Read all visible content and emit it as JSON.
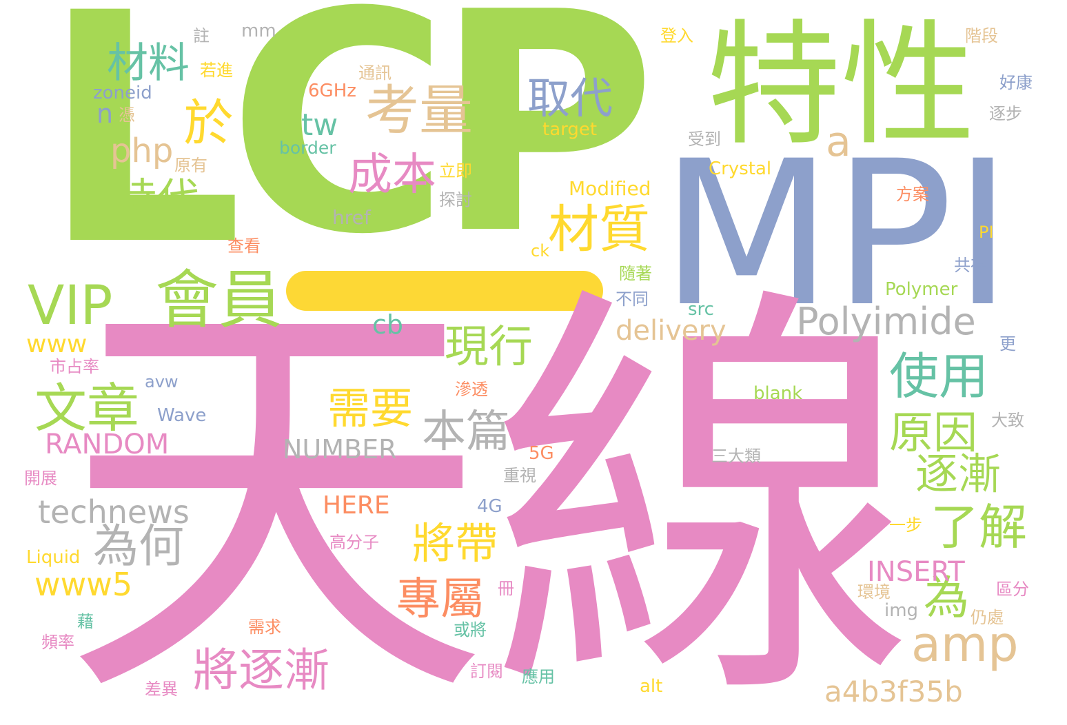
{
  "palette": {
    "green": "#a6d854",
    "blue": "#8da0cb",
    "pink": "#e78ac3",
    "yellow": "#ffd92f",
    "tan": "#e5c494",
    "teal": "#66c2a5",
    "orange": "#fc8d62",
    "gray": "#b3b3b3"
  },
  "words": {
    "lcp_l": "L",
    "lcp_c": "C",
    "lcp_p": "P",
    "mpi": "MPI",
    "tianxian": "天線",
    "texing": "特性",
    "vip": "VIP",
    "huiyuan": "會員",
    "cailiao": "材料",
    "kaoliang": "考量",
    "yu": "於",
    "qudai": "取代",
    "chengben": "成本",
    "shidai": "時代",
    "caizhi": "材質",
    "a": "a",
    "php": "php",
    "tw": "tw",
    "n": "n",
    "polyimide": "Polyimide",
    "shiyong": "使用",
    "wenzhang": "文章",
    "xianxing": "現行",
    "xuyao": "需要",
    "benpian": "本篇",
    "yuanyin": "原因",
    "zhujian": "逐漸",
    "liaojie": "了解",
    "weihe": "為何",
    "jiangdai": "將帶",
    "zhuanshu": "專屬",
    "wei": "為",
    "amp": "amp",
    "jiangzhujian": "將逐漸",
    "a4b3f35b": "a4b3f35b",
    "technews": "technews",
    "www5": "www5",
    "www": "www",
    "random": "RANDOM",
    "number": "NUMBER",
    "insert": "INSERT",
    "delivery": "delivery",
    "cb": "cb",
    "here": "HERE",
    "crystal": "Crystal",
    "modified": "Modified",
    "href": "href",
    "border": "border",
    "target": "target",
    "zoneid": "zoneid",
    "mm": "mm",
    "sixghz": "6GHz",
    "blank": "blank",
    "wave": "Wave",
    "avw": "avw",
    "polymer": "Polymer",
    "src": "src",
    "ck": "ck",
    "pi": "PI",
    "fiveg": "5G",
    "fourg": "4G",
    "liquid": "Liquid",
    "img": "img",
    "alt": "alt",
    "zhu": "註",
    "ruojin": "若進",
    "tongxun": "通訊",
    "ping": "憑",
    "yuanyou": "原有",
    "liji": "立即",
    "tantao": "探討",
    "chakan": "查看",
    "dengru": "登入",
    "jieduan": "階段",
    "haokang": "好康",
    "zhubu": "逐步",
    "shoudao": "受到",
    "fangan": "方案",
    "gongcun": "共存",
    "suizhe": "隨著",
    "butong": "不同",
    "geng": "更",
    "shizhanlv": "市占率",
    "shentou": "滲透",
    "dazhi": "大致",
    "sandalei": "三大類",
    "zhongshi": "重視",
    "kaizhan": "開展",
    "gaofenzi": "高分子",
    "yibu": "一步",
    "ce": "冊",
    "qufen": "區分",
    "huanjing": "環境",
    "rengchu": "仍處",
    "ji": "藉",
    "xuqiu": "需求",
    "huojiang": "或將",
    "pinlv": "頻率",
    "dingyue": "訂閱",
    "yingyong": "應用",
    "chayi": "差異"
  }
}
